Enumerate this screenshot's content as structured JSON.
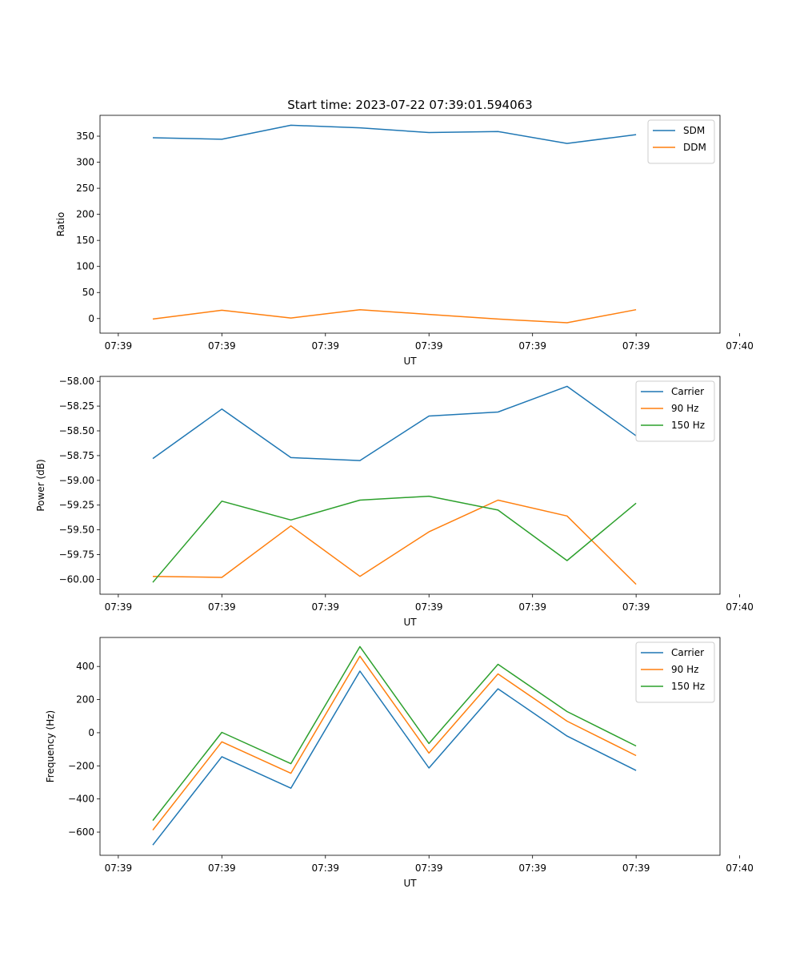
{
  "figure": {
    "title": "Start time: 2023-07-22 07:39:01.594063"
  },
  "colors": {
    "blue": "#1f77b4",
    "orange": "#ff7f0e",
    "green": "#2ca02c",
    "axis": "#000000",
    "legend_border": "#cccccc"
  },
  "chart_data": [
    {
      "type": "line",
      "title": "Start time: 2023-07-22 07:39:01.594063",
      "xlabel": "UT",
      "ylabel": "Ratio",
      "x": [
        1,
        2,
        3,
        4,
        5,
        6,
        7,
        8
      ],
      "xlim": [
        0.235,
        9.215
      ],
      "x_ticks": [
        0.5,
        2,
        3.5,
        5,
        6.5,
        8,
        9.5
      ],
      "x_tick_labels": [
        "07:39",
        "07:39",
        "07:39",
        "07:39",
        "07:39",
        "07:39",
        "07:40"
      ],
      "ylim": [
        -28,
        390
      ],
      "y_ticks": [
        0,
        50,
        100,
        150,
        200,
        250,
        300,
        350
      ],
      "y_tick_labels": [
        "0",
        "50",
        "100",
        "150",
        "200",
        "250",
        "300",
        "350"
      ],
      "legend_position": "top-right",
      "series": [
        {
          "name": "SDM",
          "color": "#1f77b4",
          "values": [
            347,
            344,
            371,
            366,
            357,
            359,
            336,
            353
          ]
        },
        {
          "name": "DDM",
          "color": "#ff7f0e",
          "values": [
            -1,
            16,
            1,
            17,
            8,
            -1,
            -8,
            17
          ]
        }
      ]
    },
    {
      "type": "line",
      "title": "",
      "xlabel": "UT",
      "ylabel": "Power (dB)",
      "x": [
        1,
        2,
        3,
        4,
        5,
        6,
        7,
        8
      ],
      "xlim": [
        0.235,
        9.215
      ],
      "x_ticks": [
        0.5,
        2,
        3.5,
        5,
        6.5,
        8,
        9.5
      ],
      "x_tick_labels": [
        "07:39",
        "07:39",
        "07:39",
        "07:39",
        "07:39",
        "07:39",
        "07:40"
      ],
      "ylim": [
        -60.15,
        -57.95
      ],
      "y_ticks": [
        -60.0,
        -59.75,
        -59.5,
        -59.25,
        -59.0,
        -58.75,
        -58.5,
        -58.25,
        -58.0
      ],
      "y_tick_labels": [
        "−60.00",
        "−59.75",
        "−59.50",
        "−59.25",
        "−59.00",
        "−58.75",
        "−58.50",
        "−58.25",
        "−58.00"
      ],
      "legend_position": "top-right",
      "series": [
        {
          "name": "Carrier",
          "color": "#1f77b4",
          "values": [
            -58.78,
            -58.28,
            -58.77,
            -58.8,
            -58.35,
            -58.31,
            -58.05,
            -58.55
          ]
        },
        {
          "name": "90 Hz",
          "color": "#ff7f0e",
          "values": [
            -59.97,
            -59.98,
            -59.46,
            -59.97,
            -59.52,
            -59.2,
            -59.36,
            -60.05
          ]
        },
        {
          "name": "150 Hz",
          "color": "#2ca02c",
          "values": [
            -60.03,
            -59.21,
            -59.4,
            -59.2,
            -59.16,
            -59.3,
            -59.81,
            -59.23
          ]
        }
      ]
    },
    {
      "type": "line",
      "title": "",
      "xlabel": "UT",
      "ylabel": "Frequency (Hz)",
      "x": [
        1,
        2,
        3,
        4,
        5,
        6,
        7,
        8
      ],
      "xlim": [
        0.235,
        9.215
      ],
      "x_ticks": [
        0.5,
        2,
        3.5,
        5,
        6.5,
        8,
        9.5
      ],
      "x_tick_labels": [
        "07:39",
        "07:39",
        "07:39",
        "07:39",
        "07:39",
        "07:39",
        "07:40"
      ],
      "ylim": [
        -740,
        575
      ],
      "y_ticks": [
        -600,
        -400,
        -200,
        0,
        200,
        400
      ],
      "y_tick_labels": [
        "−600",
        "−400",
        "−200",
        "0",
        "200",
        "400"
      ],
      "legend_position": "top-right",
      "series": [
        {
          "name": "Carrier",
          "color": "#1f77b4",
          "values": [
            -678,
            -145,
            -335,
            372,
            -213,
            265,
            -20,
            -228
          ]
        },
        {
          "name": "90 Hz",
          "color": "#ff7f0e",
          "values": [
            -588,
            -55,
            -245,
            462,
            -123,
            355,
            70,
            -138
          ]
        },
        {
          "name": "150 Hz",
          "color": "#2ca02c",
          "values": [
            -530,
            2,
            -187,
            520,
            -65,
            413,
            128,
            -80
          ]
        }
      ]
    }
  ]
}
